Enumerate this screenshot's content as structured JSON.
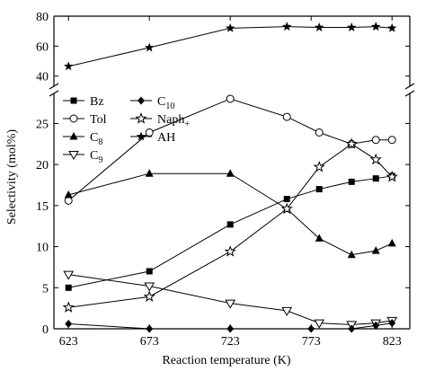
{
  "chart_data": {
    "type": "line",
    "xlabel": "Reaction temperature (K)",
    "ylabel": "Selectivity (mol%)",
    "x_ticks": [
      623,
      673,
      723,
      773,
      823
    ],
    "xlim": [
      614,
      834
    ],
    "y_axis_break": true,
    "y_lower_range": [
      0,
      28
    ],
    "y_lower_ticks": [
      0,
      5,
      10,
      15,
      20,
      25
    ],
    "y_upper_range": [
      35,
      80
    ],
    "y_upper_ticks": [
      40,
      60,
      80
    ],
    "legend_placement": "upper-left",
    "series": [
      {
        "name": "Bz",
        "marker": "filled-square",
        "axis": "lower",
        "x": [
          623,
          673,
          723,
          758,
          778,
          798,
          813,
          823
        ],
        "y": [
          5.0,
          7.0,
          12.7,
          15.8,
          17.0,
          17.9,
          18.3,
          18.6
        ]
      },
      {
        "name": "Tol",
        "marker": "open-circle",
        "axis": "lower",
        "x": [
          623,
          673,
          723,
          758,
          778,
          798,
          813,
          823
        ],
        "y": [
          15.6,
          23.9,
          28.0,
          25.8,
          23.9,
          22.5,
          23.0,
          23.0
        ]
      },
      {
        "name": "C8",
        "marker": "filled-triangle-up",
        "axis": "lower",
        "x": [
          623,
          673,
          723,
          758,
          778,
          798,
          813,
          823
        ],
        "y": [
          16.3,
          18.9,
          18.9,
          14.6,
          11.0,
          9.0,
          9.5,
          10.4
        ]
      },
      {
        "name": "C9",
        "marker": "open-triangle-down",
        "axis": "lower",
        "x": [
          623,
          673,
          723,
          758,
          778,
          798,
          813,
          823
        ],
        "y": [
          6.6,
          5.2,
          3.1,
          2.2,
          0.7,
          0.5,
          0.7,
          1.0
        ]
      },
      {
        "name": "C10",
        "marker": "filled-diamond",
        "axis": "lower",
        "x": [
          623,
          673,
          723,
          773,
          798,
          813,
          823
        ],
        "y": [
          0.6,
          0.0,
          0.0,
          0.0,
          0.0,
          0.4,
          0.7
        ]
      },
      {
        "name": "Naph+",
        "marker": "open-star",
        "axis": "lower",
        "x": [
          623,
          673,
          723,
          758,
          778,
          798,
          813,
          823
        ],
        "y": [
          2.6,
          3.9,
          9.4,
          14.6,
          19.7,
          22.5,
          20.6,
          18.5
        ]
      },
      {
        "name": "AH",
        "marker": "filled-star",
        "axis": "upper",
        "x": [
          623,
          673,
          723,
          758,
          778,
          798,
          813,
          823
        ],
        "y": [
          46.5,
          59.0,
          72.0,
          73.0,
          72.5,
          72.5,
          73.0,
          72.0
        ]
      }
    ]
  }
}
